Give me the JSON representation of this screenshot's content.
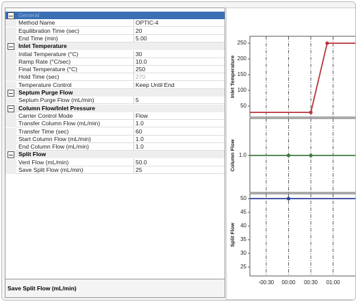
{
  "property_grid": {
    "sections": [
      {
        "title": "General",
        "selected": true,
        "rows": [
          {
            "name": "Method Name",
            "value": "OPTIC-4"
          },
          {
            "name": "Equilibration Time (sec)",
            "value": "20"
          },
          {
            "name": "End Time (min)",
            "value": "5.00"
          }
        ]
      },
      {
        "title": "Inlet Temperature",
        "rows": [
          {
            "name": "Initial Temperature (°C)",
            "value": "30"
          },
          {
            "name": "Ramp Rate (°C/sec)",
            "value": "10.0"
          },
          {
            "name": "Final Temperature (°C)",
            "value": "250"
          },
          {
            "name": "Hold Time (sec)",
            "value": "270",
            "read_only": true
          },
          {
            "name": "Temperature Control",
            "value": "Keep Until End"
          }
        ]
      },
      {
        "title": "Septum Purge Flow",
        "rows": [
          {
            "name": "Septum Purge Flow (mL/min)",
            "value": "5"
          }
        ]
      },
      {
        "title": "Column Flow/Inlet Pressure",
        "rows": [
          {
            "name": "Carrier Control Mode",
            "value": "Flow"
          },
          {
            "name": "Transfer Column Flow (mL/min)",
            "value": "1.0"
          },
          {
            "name": "Transfer Time (sec)",
            "value": "60"
          },
          {
            "name": "Start Column Flow (mL/min)",
            "value": "1.0"
          },
          {
            "name": "End Column Flow (mL/min)",
            "value": "1.0"
          }
        ]
      },
      {
        "title": "Split Flow",
        "rows": [
          {
            "name": "Vent Flow (mL/min)",
            "value": "50.0"
          },
          {
            "name": "Save Split Flow (mL/min)",
            "value": "25"
          }
        ]
      }
    ],
    "description": "Save Split Flow (mL/min)"
  },
  "time_axis": {
    "xlim": [
      -52,
      100
    ],
    "xticks": [
      {
        "value": -30,
        "label": "-00:30"
      },
      {
        "value": 0,
        "label": "00:00"
      },
      {
        "value": 30,
        "label": "00:30"
      },
      {
        "value": 60,
        "label": "01:00"
      }
    ]
  },
  "plots": [
    {
      "ylabel": "Inlet Temperature",
      "color": "#b8343c",
      "ylim": [
        15,
        272
      ],
      "yticks": [
        50,
        100,
        150,
        200,
        250
      ],
      "x": [
        -52,
        30,
        52,
        100
      ],
      "y": [
        30,
        30,
        250,
        250
      ]
    },
    {
      "ylabel": "Column Flow",
      "color": "#3f7a3f",
      "ylim": [
        0,
        2
      ],
      "yticks": [
        {
          "value": 1,
          "label": "1.0"
        }
      ],
      "x": [
        -52,
        0,
        30,
        95,
        100
      ],
      "y": [
        1,
        1,
        1,
        1,
        1
      ]
    },
    {
      "ylabel": "Split Flow",
      "color": "#2c3f9a",
      "ylim": [
        21.75,
        51.75
      ],
      "yticks": [
        25,
        30,
        35,
        40,
        45,
        50
      ],
      "x": [
        -52,
        0,
        95,
        95
      ],
      "y": [
        50,
        50,
        50,
        25
      ]
    }
  ]
}
